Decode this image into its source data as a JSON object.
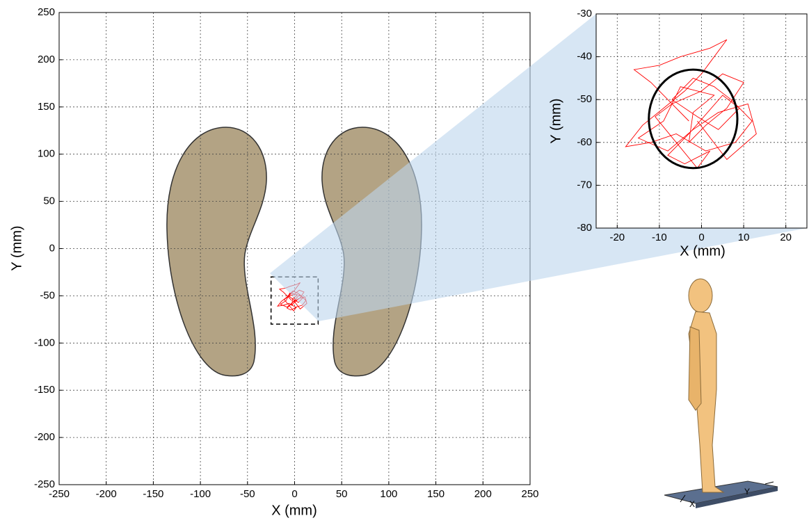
{
  "chart_data": [
    {
      "type": "line",
      "xlabel": "X (mm)",
      "ylabel": "Y (mm)",
      "xlim": [
        -250,
        250
      ],
      "ylim": [
        -250,
        250
      ],
      "xticks": [
        -250,
        -200,
        -150,
        -100,
        -50,
        0,
        50,
        100,
        150,
        200,
        250
      ],
      "yticks": [
        -250,
        -200,
        -150,
        -100,
        -50,
        0,
        50,
        100,
        150,
        200,
        250
      ],
      "grid": true,
      "color": "#ff0000",
      "x": [
        -3,
        -8,
        -12,
        -16,
        -10,
        -5,
        2,
        6,
        0,
        -4,
        -9,
        -14,
        -18,
        -12,
        -6,
        1,
        8,
        12,
        7,
        3,
        -2,
        -7,
        -1,
        4,
        9,
        5,
        -3,
        -8,
        -4,
        2,
        -1,
        -6,
        -11,
        -7,
        0,
        5,
        10,
        6,
        1,
        -3,
        -2,
        3,
        -5,
        -9,
        -15,
        -8,
        -2,
        4,
        11,
        13,
        6,
        -1
      ],
      "values": [
        -55,
        -50,
        -46,
        -43,
        -42,
        -40,
        -38,
        -36,
        -44,
        -48,
        -52,
        -56,
        -61,
        -60,
        -58,
        -62,
        -60,
        -55,
        -50,
        -47,
        -45,
        -50,
        -54,
        -57,
        -52,
        -49,
        -58,
        -63,
        -65,
        -62,
        -66,
        -60,
        -54,
        -51,
        -48,
        -44,
        -46,
        -52,
        -56,
        -60,
        -53,
        -49,
        -47,
        -55,
        -59,
        -62,
        -57,
        -53,
        -51,
        -58,
        -64,
        -55
      ]
    },
    {
      "type": "line",
      "xlabel": "X (mm)",
      "ylabel": "Y (mm)",
      "xlim": [
        -25,
        25
      ],
      "ylim": [
        -80,
        -30
      ],
      "xticks": [
        -20,
        -10,
        0,
        10,
        20
      ],
      "yticks": [
        -80,
        -70,
        -60,
        -50,
        -40,
        -30
      ],
      "grid": true,
      "color": "#ff0000",
      "x": [
        -3,
        -8,
        -12,
        -16,
        -10,
        -5,
        2,
        6,
        0,
        -4,
        -9,
        -14,
        -18,
        -12,
        -6,
        1,
        8,
        12,
        7,
        3,
        -2,
        -7,
        -1,
        4,
        9,
        5,
        -3,
        -8,
        -4,
        2,
        -1,
        -6,
        -11,
        -7,
        0,
        5,
        10,
        6,
        1,
        -3,
        -2,
        3,
        -5,
        -9,
        -15,
        -8,
        -2,
        4,
        11,
        13,
        6,
        -1
      ],
      "values": [
        -55,
        -50,
        -46,
        -43,
        -42,
        -40,
        -38,
        -36,
        -44,
        -48,
        -52,
        -56,
        -61,
        -60,
        -58,
        -62,
        -60,
        -55,
        -50,
        -47,
        -45,
        -50,
        -54,
        -57,
        -52,
        -49,
        -58,
        -63,
        -65,
        -62,
        -66,
        -60,
        -54,
        -51,
        -48,
        -44,
        -46,
        -52,
        -56,
        -60,
        -53,
        -49,
        -47,
        -55,
        -59,
        -62,
        -57,
        -53,
        -51,
        -58,
        -64,
        -55
      ],
      "ellipse": {
        "cx": -2,
        "cy": -54.5,
        "rx": 10.5,
        "ry": 11.5,
        "color": "#000000"
      }
    }
  ],
  "illustration": {
    "x_label": "X",
    "y_label": "Y"
  }
}
